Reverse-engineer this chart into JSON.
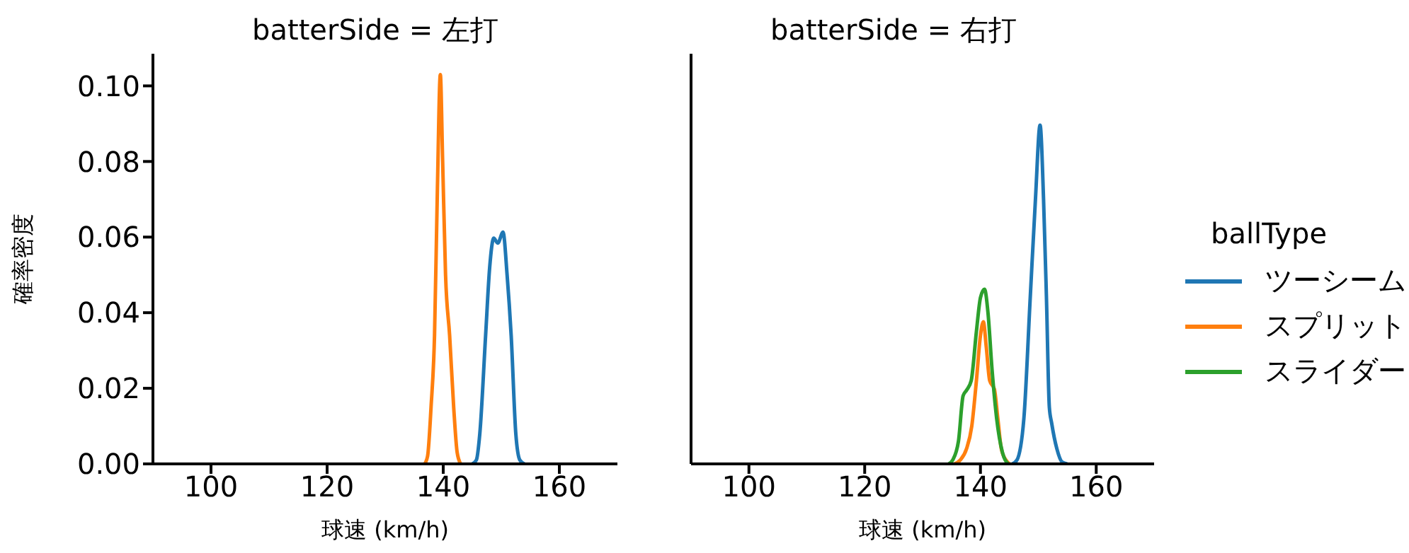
{
  "chart_data": [
    {
      "type": "line",
      "title": "batterSide = 左打",
      "xlabel": "球速 (km/h)",
      "ylabel": "確率密度",
      "xlim": [
        90,
        170
      ],
      "xticks": [
        100,
        120,
        140,
        160
      ],
      "ylim": [
        0,
        0.1085
      ],
      "yticks": [
        {
          "value": 0,
          "label": "0.00"
        },
        {
          "value": 0.02,
          "label": "0.02"
        },
        {
          "value": 0.04,
          "label": "0.04"
        },
        {
          "value": 0.06,
          "label": "0.06"
        },
        {
          "value": 0.08,
          "label": "0.08"
        },
        {
          "value": 0.1,
          "label": "0.10"
        }
      ],
      "legend": false,
      "series": [
        {
          "color": "#1f77b4",
          "x": [
            145,
            145.7,
            146.3,
            147.3,
            148.0,
            148.7,
            149.4,
            150.3,
            151.0,
            151.7,
            152.5,
            153.2,
            154
          ],
          "values": [
            0,
            0.001,
            0.008,
            0.034,
            0.052,
            0.0597,
            0.0584,
            0.0613,
            0.05,
            0.034,
            0.008,
            0.001,
            0
          ]
        },
        {
          "color": "#ff7f0e",
          "x": [
            136.8,
            137.3,
            137.9,
            138.5,
            139.0,
            139.5,
            139.9,
            140.4,
            141.1,
            141.8,
            142.4,
            143
          ],
          "values": [
            0,
            0.002,
            0.015,
            0.034,
            0.073,
            0.103,
            0.08,
            0.05,
            0.034,
            0.015,
            0.003,
            0
          ]
        }
      ]
    },
    {
      "type": "line",
      "title": "batterSide = 右打",
      "xlabel": "球速 (km/h)",
      "xlim": [
        90,
        170
      ],
      "xticks": [
        100,
        120,
        140,
        160
      ],
      "ylim": [
        0,
        0.1085
      ],
      "yticks": [
        {
          "value": 0,
          "label": null
        },
        {
          "value": 0.02,
          "label": null
        },
        {
          "value": 0.04,
          "label": null
        },
        {
          "value": 0.06,
          "label": null
        },
        {
          "value": 0.08,
          "label": null
        },
        {
          "value": 0.1,
          "label": null
        }
      ],
      "tick_labels": "x",
      "legend": "right",
      "legend_title": "ballType",
      "series": [
        {
          "name": "ツーシーム",
          "color": "#1f77b4",
          "x": [
            145.5,
            146.3,
            147.5,
            148.6,
            149.5,
            150.3,
            150.9,
            151.4,
            151.9,
            152.3,
            153.2,
            154.1,
            155
          ],
          "values": [
            0,
            0.001,
            0.012,
            0.044,
            0.07,
            0.0896,
            0.07,
            0.044,
            0.015,
            0.0108,
            0.004,
            0.0005,
            0
          ]
        },
        {
          "name": "スプリット",
          "color": "#ff7f0e",
          "x": [
            135.5,
            136.5,
            137.6,
            138.5,
            139.3,
            140.0,
            140.5,
            141.0,
            141.6,
            142.4,
            143.0,
            143.6,
            144.4,
            145
          ],
          "values": [
            0,
            0.001,
            0.004,
            0.01,
            0.022,
            0.034,
            0.0376,
            0.031,
            0.022,
            0.0198,
            0.012,
            0.004,
            0.001,
            0
          ]
        },
        {
          "name": "スライダー",
          "color": "#2ca02c",
          "x": [
            134.5,
            135.2,
            136.2,
            137.0,
            137.6,
            138.4,
            139.3,
            140.0,
            140.7,
            141.3,
            142.0,
            142.8,
            143.8,
            144.8
          ],
          "values": [
            0,
            0.001,
            0.006,
            0.018,
            0.0195,
            0.022,
            0.035,
            0.044,
            0.0462,
            0.04,
            0.025,
            0.012,
            0.003,
            0
          ]
        }
      ]
    }
  ]
}
